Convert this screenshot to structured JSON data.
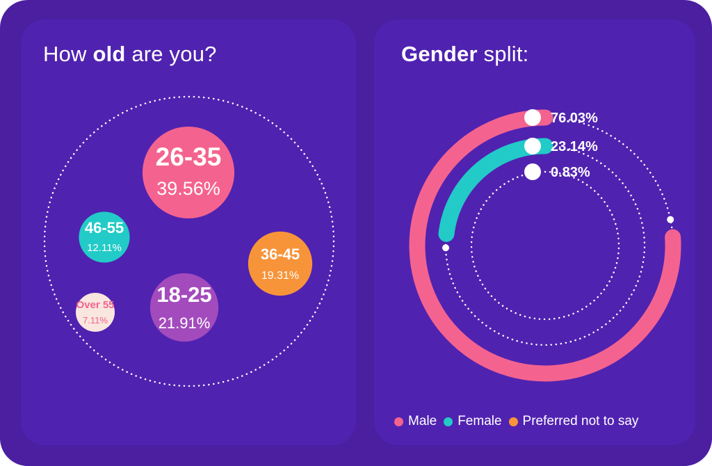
{
  "left_panel": {
    "title_pre": "How ",
    "title_bold": "old",
    "title_post": " are you?"
  },
  "right_panel": {
    "title_bold": "Gender",
    "title_post": " split:"
  },
  "colors": {
    "background": "#4b1fa0",
    "panel": "#5022b0",
    "pink": "#f4638f",
    "teal": "#22cbc7",
    "orange": "#f7943a",
    "purple": "#a34bbd",
    "cream": "#f9e6df",
    "white": "#ffffff"
  },
  "chart_data": [
    {
      "type": "bubble",
      "title": "How old are you?",
      "categories": [
        "26-35",
        "18-25",
        "36-45",
        "46-55",
        "Over 55"
      ],
      "values": [
        39.56,
        21.91,
        19.31,
        12.11,
        7.11
      ],
      "labels": [
        "39.56%",
        "21.91%",
        "19.31%",
        "12.11%",
        "7.11%"
      ],
      "colors": [
        "#f4638f",
        "#a34bbd",
        "#f7943a",
        "#22cbc7",
        "#f9e6df"
      ]
    },
    {
      "type": "radial-bar",
      "title": "Gender split:",
      "categories": [
        "Male",
        "Female",
        "Preferred not to say"
      ],
      "values": [
        76.03,
        23.14,
        0.83
      ],
      "labels": [
        "76.03%",
        "23.14%",
        "0.83%"
      ],
      "colors": [
        "#f4638f",
        "#22cbc7",
        "#f7943a"
      ],
      "legend_position": "bottom"
    }
  ]
}
